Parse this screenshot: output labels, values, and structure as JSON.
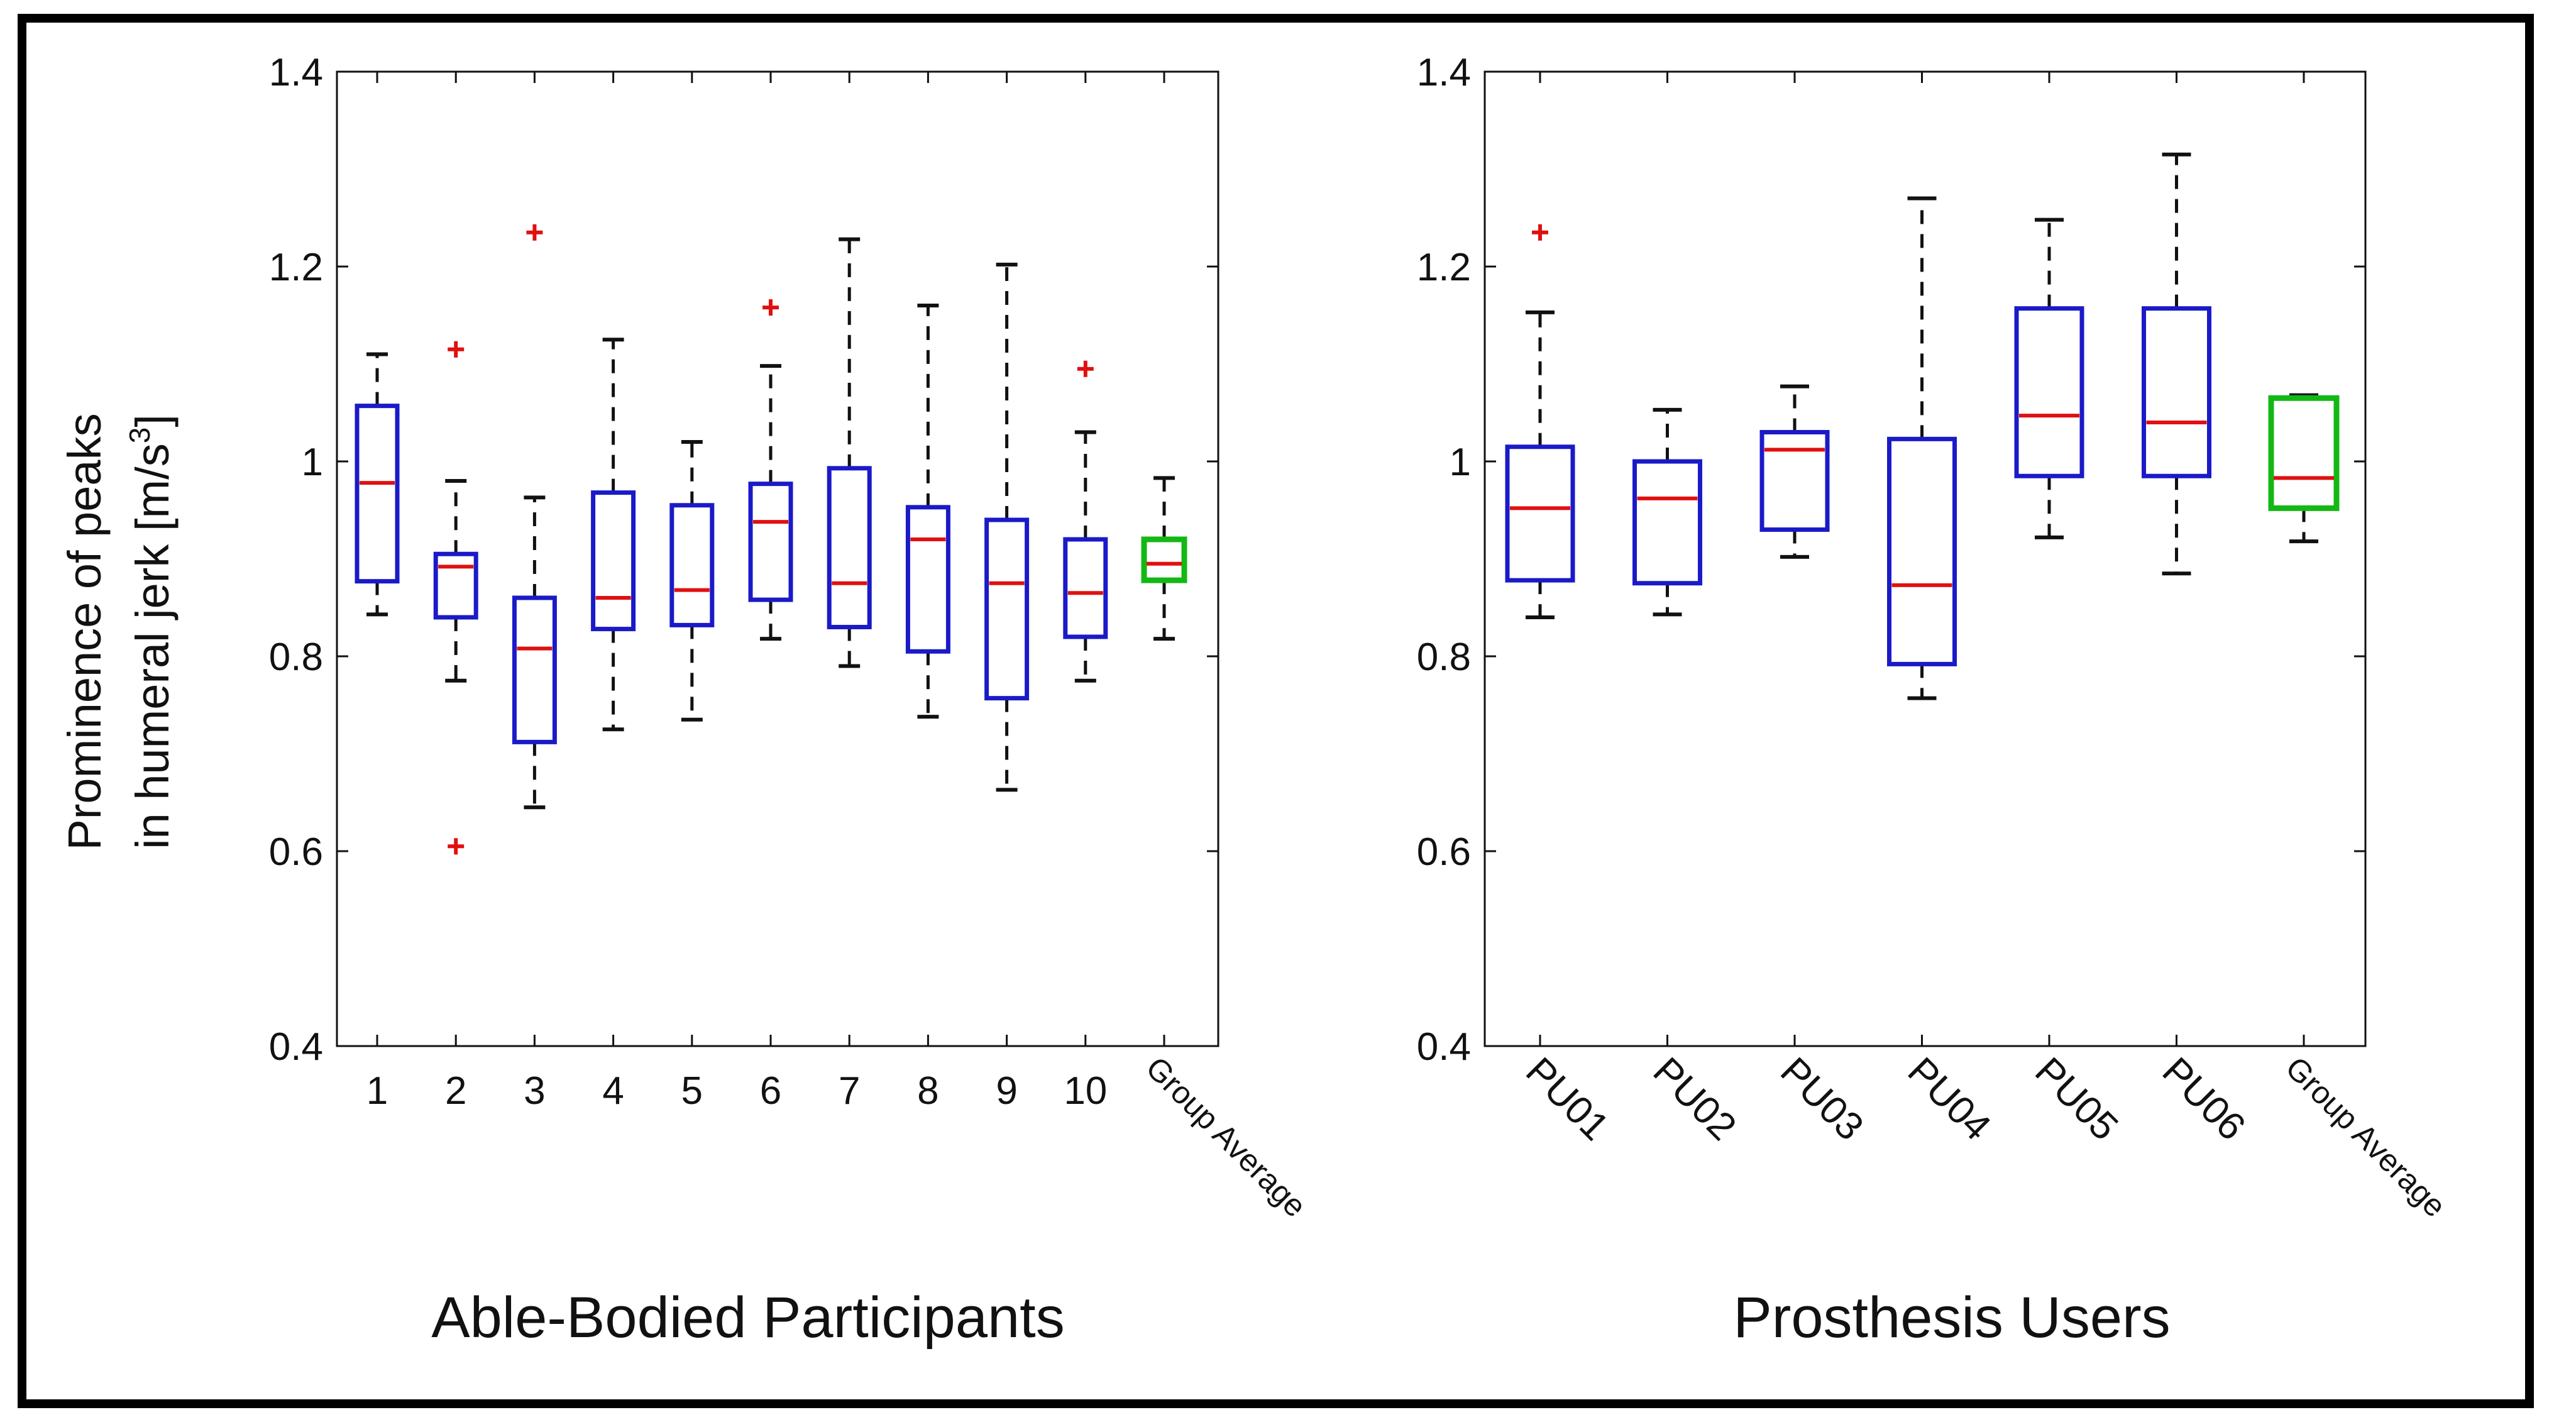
{
  "chart_data": [
    {
      "type": "box",
      "title": "Able-Bodied Participants",
      "ylabel_line1": "Prominence of peaks",
      "ylabel_line2": "in humeral jerk [m/s",
      "ylabel_sup": "3",
      "ylabel_close": "]",
      "ylim": [
        0.4,
        1.4
      ],
      "yticks": [
        0.4,
        0.6,
        0.8,
        1,
        1.2,
        1.4
      ],
      "ytick_labels": [
        "0.4",
        "0.6",
        "0.8",
        "1",
        "1.2",
        "1.4"
      ],
      "categories": [
        "1",
        "2",
        "3",
        "4",
        "5",
        "6",
        "7",
        "8",
        "9",
        "10",
        "Group Average"
      ],
      "boxes": [
        {
          "wlo": 0.843,
          "q1": 0.877,
          "med": 0.978,
          "q3": 1.057,
          "whi": 1.11,
          "outliers": []
        },
        {
          "wlo": 0.775,
          "q1": 0.84,
          "med": 0.892,
          "q3": 0.905,
          "whi": 0.98,
          "outliers": [
            1.115,
            0.605
          ]
        },
        {
          "wlo": 0.645,
          "q1": 0.712,
          "med": 0.808,
          "q3": 0.86,
          "whi": 0.963,
          "outliers": [
            1.235
          ]
        },
        {
          "wlo": 0.725,
          "q1": 0.828,
          "med": 0.86,
          "q3": 0.968,
          "whi": 1.125,
          "outliers": []
        },
        {
          "wlo": 0.735,
          "q1": 0.832,
          "med": 0.868,
          "q3": 0.955,
          "whi": 1.02,
          "outliers": []
        },
        {
          "wlo": 0.818,
          "q1": 0.858,
          "med": 0.938,
          "q3": 0.977,
          "whi": 1.098,
          "outliers": [
            1.158
          ]
        },
        {
          "wlo": 0.79,
          "q1": 0.83,
          "med": 0.875,
          "q3": 0.993,
          "whi": 1.228,
          "outliers": []
        },
        {
          "wlo": 0.738,
          "q1": 0.805,
          "med": 0.92,
          "q3": 0.953,
          "whi": 1.16,
          "outliers": []
        },
        {
          "wlo": 0.663,
          "q1": 0.757,
          "med": 0.875,
          "q3": 0.94,
          "whi": 1.202,
          "outliers": []
        },
        {
          "wlo": 0.775,
          "q1": 0.82,
          "med": 0.865,
          "q3": 0.92,
          "whi": 1.03,
          "outliers": [
            1.095
          ]
        },
        {
          "wlo": 0.818,
          "q1": 0.878,
          "med": 0.895,
          "q3": 0.92,
          "whi": 0.983,
          "outliers": []
        }
      ]
    },
    {
      "type": "box",
      "title": "Prosthesis Users",
      "ylim": [
        0.4,
        1.4
      ],
      "yticks": [
        0.4,
        0.6,
        0.8,
        1,
        1.2,
        1.4
      ],
      "ytick_labels": [
        "0.4",
        "0.6",
        "0.8",
        "1",
        "1.2",
        "1.4"
      ],
      "categories": [
        "PU01",
        "PU02",
        "PU03",
        "PU04",
        "PU05",
        "PU06",
        "Group Average"
      ],
      "boxes": [
        {
          "wlo": 0.84,
          "q1": 0.878,
          "med": 0.952,
          "q3": 1.015,
          "whi": 1.153,
          "outliers": [
            1.235
          ]
        },
        {
          "wlo": 0.843,
          "q1": 0.875,
          "med": 0.962,
          "q3": 1.0,
          "whi": 1.053,
          "outliers": []
        },
        {
          "wlo": 0.902,
          "q1": 0.93,
          "med": 1.012,
          "q3": 1.03,
          "whi": 1.077,
          "outliers": []
        },
        {
          "wlo": 0.757,
          "q1": 0.792,
          "med": 0.873,
          "q3": 1.023,
          "whi": 1.27,
          "outliers": []
        },
        {
          "wlo": 0.922,
          "q1": 0.985,
          "med": 1.047,
          "q3": 1.157,
          "whi": 1.248,
          "outliers": []
        },
        {
          "wlo": 0.885,
          "q1": 0.985,
          "med": 1.04,
          "q3": 1.157,
          "whi": 1.315,
          "outliers": []
        },
        {
          "wlo": 0.918,
          "q1": 0.952,
          "med": 0.983,
          "q3": 1.065,
          "whi": 1.068,
          "outliers": []
        }
      ]
    }
  ],
  "colors": {
    "box": "#1a1ac8",
    "group_box": "#14b814",
    "median": "#e01010",
    "outlier": "#e01010",
    "whisker": "#111111",
    "axis": "#111111"
  }
}
